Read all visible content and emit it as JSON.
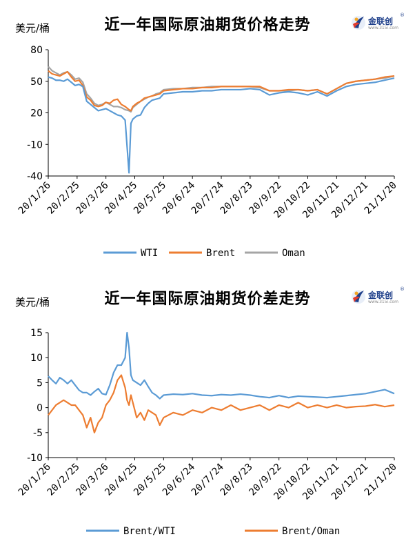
{
  "charts": [
    {
      "unit": "美元/桶",
      "title": "近一年国际原油期货价格走势",
      "logo": {
        "name": "金联创",
        "sub": "www.315i.com"
      },
      "chart_data": {
        "type": "line",
        "ylim": [
          -40,
          80
        ],
        "yticks": [
          "80",
          "50",
          "20",
          "-10",
          "-40"
        ],
        "categories": [
          "20/1/26",
          "20/2/25",
          "20/3/26",
          "20/4/25",
          "20/5/25",
          "20/6/24",
          "20/7/24",
          "20/8/23",
          "20/9/22",
          "20/10/22",
          "20/11/21",
          "20/12/21",
          "21/1/20"
        ],
        "x": [
          0,
          4,
          8,
          12,
          16,
          20,
          24,
          28,
          32,
          36,
          40,
          44,
          48,
          52,
          56,
          60,
          64,
          68,
          72,
          76,
          80,
          84,
          86,
          88,
          92,
          96,
          100,
          104,
          108,
          112,
          116,
          120,
          130,
          140,
          150,
          160,
          170,
          180,
          190,
          200,
          210,
          220,
          230,
          240,
          250,
          260,
          270,
          280,
          290,
          300,
          310,
          320,
          330,
          340,
          350,
          360
        ],
        "series": [
          {
            "name": "WTI",
            "color": "#5b9bd5",
            "values": [
              54,
              53,
              51,
              51,
              50,
              52,
              49,
              46,
              47,
              45,
              31,
              28,
              25,
              22,
              23,
              24,
              22,
              20,
              18,
              17,
              13,
              -37,
              10,
              14,
              17,
              18,
              25,
              29,
              32,
              33,
              34,
              38,
              39,
              40,
              40,
              41,
              41,
              42,
              42,
              42,
              43,
              42,
              37,
              39,
              40,
              39,
              37,
              40,
              36,
              41,
              45,
              47,
              48,
              49,
              51,
              53
            ]
          },
          {
            "name": "Brent",
            "color": "#ed7d31",
            "values": [
              60,
              57,
              56,
              55,
              57,
              59,
              54,
              50,
              51,
              46,
              35,
              32,
              27,
              26,
              27,
              30,
              29,
              32,
              33,
              28,
              26,
              23,
              22,
              26,
              29,
              31,
              34,
              35,
              36,
              37,
              38,
              41,
              42,
              43,
              43,
              44,
              44,
              45,
              45,
              45,
              45,
              45,
              41,
              41,
              42,
              42,
              41,
              42,
              38,
              43,
              48,
              50,
              51,
              52,
              54,
              55
            ]
          },
          {
            "name": "Oman",
            "color": "#a5a5a5",
            "values": [
              64,
              60,
              58,
              56,
              58,
              59,
              56,
              52,
              53,
              49,
              38,
              34,
              29,
              27,
              28,
              30,
              28,
              26,
              26,
              25,
              23,
              22,
              21,
              25,
              28,
              31,
              33,
              35,
              36,
              38,
              39,
              42,
              43,
              43,
              44,
              44,
              45,
              45,
              45,
              45,
              45,
              44,
              41,
              41,
              41,
              42,
              41,
              42,
              38,
              43,
              48,
              50,
              51,
              52,
              53,
              55
            ]
          }
        ]
      }
    },
    {
      "unit": "美元/桶",
      "title": "近一年国际原油期货价差走势",
      "logo": {
        "name": "金联创",
        "sub": "www.315i.com"
      },
      "chart_data": {
        "type": "line",
        "ylim": [
          -10,
          15
        ],
        "yticks": [
          "15",
          "10",
          "5",
          "0",
          "-5",
          "-10"
        ],
        "categories": [
          "20/1/26",
          "20/2/25",
          "20/3/26",
          "20/4/25",
          "20/5/25",
          "20/6/24",
          "20/7/24",
          "20/8/23",
          "20/9/22",
          "20/10/22",
          "20/11/21",
          "20/12/21",
          "21/1/20"
        ],
        "x": [
          0,
          4,
          8,
          12,
          16,
          20,
          24,
          28,
          32,
          36,
          40,
          44,
          48,
          52,
          56,
          60,
          64,
          68,
          72,
          76,
          80,
          82,
          84,
          86,
          88,
          92,
          96,
          100,
          104,
          108,
          112,
          116,
          120,
          130,
          140,
          150,
          160,
          170,
          180,
          190,
          200,
          210,
          220,
          230,
          240,
          250,
          260,
          270,
          280,
          290,
          300,
          310,
          320,
          330,
          340,
          350,
          360
        ],
        "series": [
          {
            "name": "Brent/WTI",
            "color": "#5b9bd5",
            "values": [
              6.3,
              5.5,
              4.8,
              6.0,
              5.5,
              4.8,
              5.5,
              4.5,
              3.5,
              3.0,
              3.0,
              2.5,
              3.2,
              3.8,
              2.8,
              2.6,
              4.5,
              7.0,
              8.5,
              8.5,
              10.0,
              15,
              12.0,
              6.5,
              5.5,
              5.0,
              4.5,
              5.5,
              4.2,
              3.0,
              2.5,
              1.8,
              2.5,
              2.7,
              2.6,
              2.8,
              2.5,
              2.4,
              2.6,
              2.5,
              2.7,
              2.5,
              2.2,
              2.0,
              2.4,
              2.0,
              2.3,
              2.2,
              2.1,
              2.0,
              2.2,
              2.4,
              2.6,
              2.8,
              3.2,
              3.6,
              2.8
            ]
          },
          {
            "name": "Brent/Oman",
            "color": "#ed7d31",
            "values": [
              -1.5,
              -0.5,
              0.5,
              1.0,
              1.5,
              1.0,
              0.5,
              0.5,
              -0.5,
              -1.5,
              -4.0,
              -2.0,
              -5.0,
              -3.0,
              -2.0,
              0.5,
              1.5,
              3.0,
              5.5,
              6.5,
              4.0,
              1.5,
              0.5,
              2.5,
              1.0,
              -2.0,
              -1.0,
              -2.5,
              -0.5,
              -1.0,
              -1.5,
              -3.5,
              -2.0,
              -1.0,
              -1.5,
              -0.5,
              -1.0,
              0.0,
              -0.5,
              0.5,
              -0.5,
              0.0,
              0.5,
              -0.5,
              0.5,
              0.0,
              1.0,
              0.0,
              0.5,
              0.0,
              0.5,
              0.0,
              0.2,
              0.3,
              0.6,
              0.2,
              0.5
            ]
          }
        ]
      }
    }
  ]
}
